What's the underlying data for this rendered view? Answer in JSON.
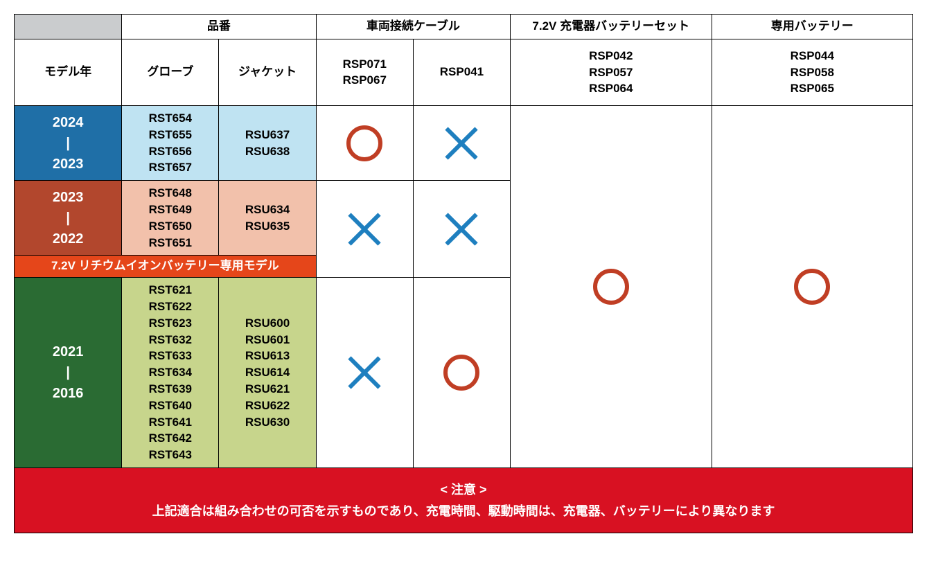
{
  "colors": {
    "border": "#000000",
    "corner_bg": "#caccce",
    "year1_bg": "#1f6fa7",
    "year1_cell_bg": "#bfe3f2",
    "year2_bg": "#b2472d",
    "year2_cell_bg": "#f2c1ab",
    "lithium_bg": "#e5461a",
    "year3_bg": "#2a6b33",
    "year3_cell_bg": "#c7d58c",
    "caution_bg": "#d81122",
    "circle": "#c03e24",
    "cross": "#1e7fbf",
    "text": "#111111",
    "white": "#ffffff"
  },
  "header": {
    "part_number": "品番",
    "cable": "車両接続ケーブル",
    "charger_set": "7.2V 充電器バッテリーセット",
    "battery": "専用バッテリー"
  },
  "subheader": {
    "model_year": "モデル年",
    "glove": "グローブ",
    "jacket": "ジャケット",
    "cable1": "RSP071\nRSP067",
    "cable2": "RSP041",
    "charger_codes": "RSP042\nRSP057\nRSP064",
    "battery_codes": "RSP044\nRSP058\nRSP065"
  },
  "rows": {
    "r1": {
      "year": "2024\n|\n2023",
      "glove": "RST654\nRST655\nRST656\nRST657",
      "jacket": "RSU637\nRSU638",
      "cable1": "circle",
      "cable2": "cross"
    },
    "r2": {
      "year": "2023\n|\n2022",
      "glove": "RST648\nRST649\nRST650\nRST651",
      "jacket": "RSU634\nRSU635",
      "cable1": "cross",
      "cable2": "cross"
    },
    "lithium_note": "7.2V リチウムイオンバッテリー専用モデル",
    "r3": {
      "year": "2021\n|\n2016",
      "glove": "RST621\nRST622\nRST623\nRST632\nRST633\nRST634\nRST639\nRST640\nRST641\nRST642\nRST643",
      "jacket": "RSU600\nRSU601\nRSU613\nRSU614\nRSU621\nRSU622\nRSU630",
      "cable1": "cross",
      "cable2": "circle"
    },
    "charger_mark": "circle",
    "battery_mark": "circle"
  },
  "caution": {
    "title": "< 注意 >",
    "text": "上記適合は組み合わせの可否を示すものであり、充電時間、駆動時間は、充電器、バッテリーにより異なります"
  },
  "col_widths": {
    "c1": 155,
    "c2": 140,
    "c3": 140,
    "c4": 140,
    "c5": 140,
    "c6": 290,
    "c7": 290
  },
  "mark_size": 52,
  "mark_stroke": 6
}
